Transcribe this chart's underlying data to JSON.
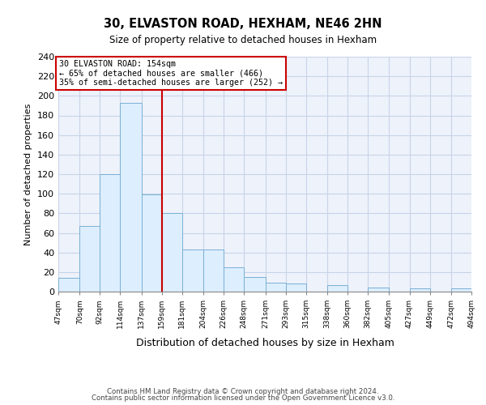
{
  "title": "30, ELVASTON ROAD, HEXHAM, NE46 2HN",
  "subtitle": "Size of property relative to detached houses in Hexham",
  "xlabel": "Distribution of detached houses by size in Hexham",
  "ylabel": "Number of detached properties",
  "bin_labels": [
    "47sqm",
    "70sqm",
    "92sqm",
    "114sqm",
    "137sqm",
    "159sqm",
    "181sqm",
    "204sqm",
    "226sqm",
    "248sqm",
    "271sqm",
    "293sqm",
    "315sqm",
    "338sqm",
    "360sqm",
    "382sqm",
    "405sqm",
    "427sqm",
    "449sqm",
    "472sqm",
    "494sqm"
  ],
  "bar_heights": [
    14,
    67,
    120,
    193,
    99,
    80,
    43,
    43,
    25,
    15,
    9,
    8,
    0,
    7,
    0,
    4,
    0,
    3,
    0,
    3
  ],
  "bar_left_edges": [
    47,
    70,
    92,
    114,
    137,
    159,
    181,
    204,
    226,
    248,
    271,
    293,
    315,
    338,
    360,
    382,
    405,
    427,
    449,
    472
  ],
  "bin_widths": [
    23,
    22,
    22,
    23,
    22,
    22,
    23,
    22,
    22,
    23,
    22,
    22,
    23,
    22,
    22,
    23,
    22,
    22,
    23,
    22
  ],
  "vline_x": 159,
  "annotation_title": "30 ELVASTON ROAD: 154sqm",
  "annotation_line1": "← 65% of detached houses are smaller (466)",
  "annotation_line2": "35% of semi-detached houses are larger (252) →",
  "bar_color": "#ddeeff",
  "bar_edge_color": "#7ab0d4",
  "vline_color": "#cc0000",
  "annotation_box_edge": "#cc0000",
  "grid_color": "#c8d4e8",
  "background_color": "#eef2fb",
  "ylim": [
    0,
    240
  ],
  "yticks": [
    0,
    20,
    40,
    60,
    80,
    100,
    120,
    140,
    160,
    180,
    200,
    220,
    240
  ],
  "footer_line1": "Contains HM Land Registry data © Crown copyright and database right 2024.",
  "footer_line2": "Contains public sector information licensed under the Open Government Licence v3.0."
}
